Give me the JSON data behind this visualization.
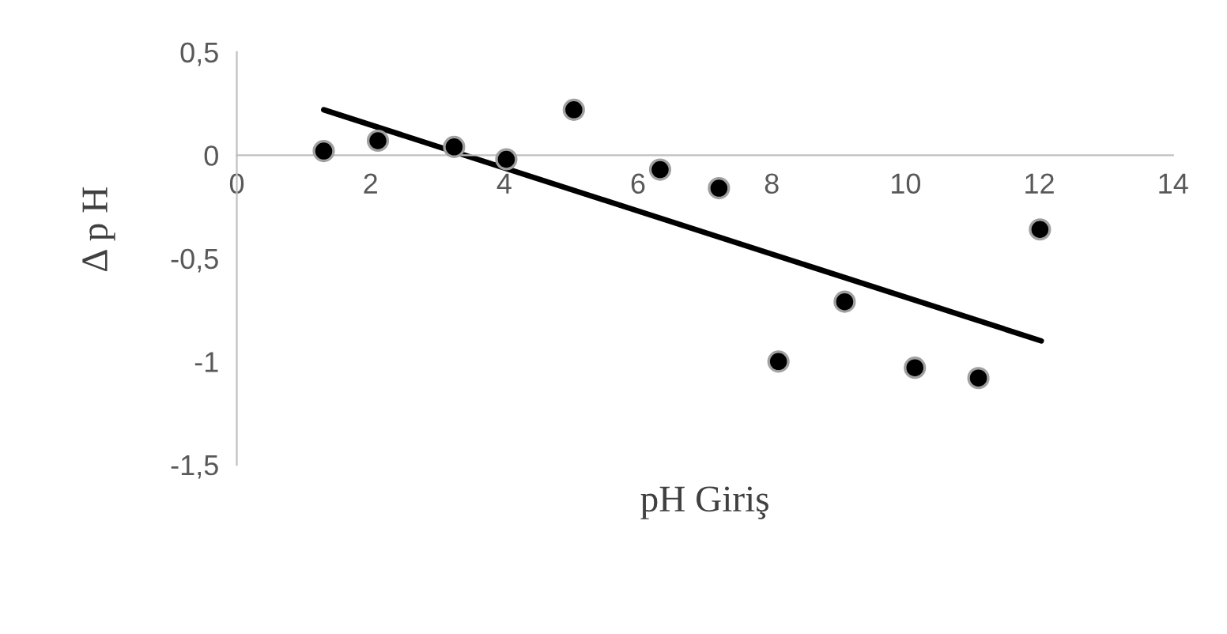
{
  "chart_data": {
    "type": "scatter",
    "xlabel": "pH Giriş",
    "ylabel": "Δ p H",
    "xlim": [
      0,
      14
    ],
    "ylim": [
      -1.5,
      0.5
    ],
    "xticks": [
      0,
      2,
      4,
      6,
      8,
      10,
      12,
      14
    ],
    "yticks": [
      {
        "value": -1.5,
        "label": "-1,5"
      },
      -1,
      {
        "value": -0.5,
        "label": "-0,5"
      },
      0,
      {
        "value": 0.5,
        "label": "0,5"
      }
    ],
    "grid": false,
    "legend": false,
    "marker": "circle",
    "series": [
      {
        "color": "#000000",
        "x": [
          1.3,
          2.11,
          3.25,
          4.03,
          5.04,
          6.33,
          7.21,
          8.1,
          9.09,
          10.14,
          11.09,
          12.01
        ],
        "values": [
          0.02,
          0.07,
          0.04,
          -0.02,
          0.22,
          -0.07,
          -0.16,
          -1.0,
          -0.71,
          -1.03,
          -1.08,
          -0.36
        ]
      },
      {
        "type": "line",
        "marker": "none",
        "color": "#000000",
        "x": [
          1.3,
          12.03
        ],
        "values": [
          0.22,
          -0.9
        ]
      }
    ]
  }
}
